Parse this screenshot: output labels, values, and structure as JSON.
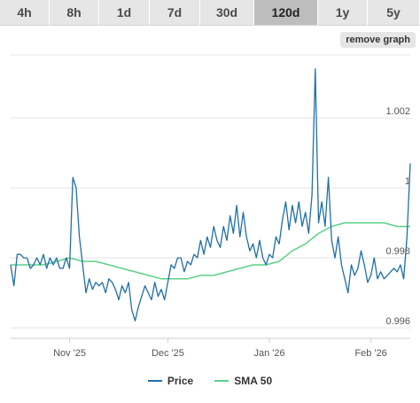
{
  "tabs": [
    {
      "label": "4h",
      "active": false
    },
    {
      "label": "8h",
      "active": false
    },
    {
      "label": "1d",
      "active": false
    },
    {
      "label": "7d",
      "active": false
    },
    {
      "label": "30d",
      "active": false
    },
    {
      "label": "120d",
      "active": true
    },
    {
      "label": "1y",
      "active": false
    },
    {
      "label": "5y",
      "active": false
    }
  ],
  "remove_graph_label": "remove graph",
  "legend": {
    "price_label": "Price",
    "sma_label": "SMA 50"
  },
  "colors": {
    "price": "#1f6fa8",
    "sma": "#5bd08a",
    "grid": "#e4e4e4",
    "axis_text": "#555555",
    "tab_active": "#bdbdbd",
    "tab": "#e6e6e6"
  },
  "chart_data": {
    "type": "line",
    "title": "",
    "xlabel": "",
    "ylabel": "",
    "x_range": [
      "2025-10-14",
      "2026-02-13"
    ],
    "ylim": [
      0.9957,
      1.0038
    ],
    "x_ticks": [
      {
        "date": "2025-11-01",
        "label": "Nov '25"
      },
      {
        "date": "2025-12-01",
        "label": "Dec '25"
      },
      {
        "date": "2026-01-01",
        "label": "Jan '26"
      },
      {
        "date": "2026-02-01",
        "label": "Feb '26"
      }
    ],
    "y_ticks": [
      {
        "value": 0.996,
        "label": "0.996"
      },
      {
        "value": 0.998,
        "label": "0.998"
      },
      {
        "value": 1.0,
        "label": "1"
      },
      {
        "value": 1.002,
        "label": "1.002"
      }
    ],
    "grid": true,
    "legend_position": "bottom",
    "series": [
      {
        "name": "Price",
        "points": [
          [
            "2025-10-14",
            0.9978
          ],
          [
            "2025-10-15",
            0.9972
          ],
          [
            "2025-10-16",
            0.9981
          ],
          [
            "2025-10-17",
            0.9981
          ],
          [
            "2025-10-18",
            0.998
          ],
          [
            "2025-10-19",
            0.998
          ],
          [
            "2025-10-20",
            0.9977
          ],
          [
            "2025-10-21",
            0.9978
          ],
          [
            "2025-10-22",
            0.998
          ],
          [
            "2025-10-23",
            0.9978
          ],
          [
            "2025-10-24",
            0.9981
          ],
          [
            "2025-10-25",
            0.9977
          ],
          [
            "2025-10-26",
            0.998
          ],
          [
            "2025-10-27",
            0.9978
          ],
          [
            "2025-10-28",
            0.998
          ],
          [
            "2025-10-29",
            0.9977
          ],
          [
            "2025-10-30",
            0.9977
          ],
          [
            "2025-10-31",
            0.998
          ],
          [
            "2025-11-01",
            0.9977
          ],
          [
            "2025-11-02",
            1.0003
          ],
          [
            "2025-11-03",
            1.0
          ],
          [
            "2025-11-04",
            0.9986
          ],
          [
            "2025-11-05",
            0.9978
          ],
          [
            "2025-11-06",
            0.997
          ],
          [
            "2025-11-07",
            0.9974
          ],
          [
            "2025-11-08",
            0.9971
          ],
          [
            "2025-11-09",
            0.9973
          ],
          [
            "2025-11-10",
            0.9972
          ],
          [
            "2025-11-11",
            0.9973
          ],
          [
            "2025-11-12",
            0.997
          ],
          [
            "2025-11-13",
            0.9974
          ],
          [
            "2025-11-14",
            0.9973
          ],
          [
            "2025-11-15",
            0.9971
          ],
          [
            "2025-11-16",
            0.9968
          ],
          [
            "2025-11-17",
            0.9972
          ],
          [
            "2025-11-18",
            0.997
          ],
          [
            "2025-11-19",
            0.9973
          ],
          [
            "2025-11-20",
            0.9965
          ],
          [
            "2025-11-21",
            0.9962
          ],
          [
            "2025-11-22",
            0.9966
          ],
          [
            "2025-11-23",
            0.9969
          ],
          [
            "2025-11-24",
            0.9972
          ],
          [
            "2025-11-25",
            0.997
          ],
          [
            "2025-11-26",
            0.9968
          ],
          [
            "2025-11-27",
            0.9973
          ],
          [
            "2025-11-28",
            0.9969
          ],
          [
            "2025-11-29",
            0.9971
          ],
          [
            "2025-11-30",
            0.9968
          ],
          [
            "2025-12-01",
            0.9973
          ],
          [
            "2025-12-02",
            0.9978
          ],
          [
            "2025-12-03",
            0.9977
          ],
          [
            "2025-12-04",
            0.998
          ],
          [
            "2025-12-05",
            0.998
          ],
          [
            "2025-12-06",
            0.9976
          ],
          [
            "2025-12-07",
            0.9979
          ],
          [
            "2025-12-08",
            0.9978
          ],
          [
            "2025-12-09",
            0.9981
          ],
          [
            "2025-12-10",
            0.998
          ],
          [
            "2025-12-11",
            0.9985
          ],
          [
            "2025-12-12",
            0.9981
          ],
          [
            "2025-12-13",
            0.9986
          ],
          [
            "2025-12-14",
            0.9983
          ],
          [
            "2025-12-15",
            0.9989
          ],
          [
            "2025-12-16",
            0.9985
          ],
          [
            "2025-12-17",
            0.9983
          ],
          [
            "2025-12-18",
            0.9989
          ],
          [
            "2025-12-19",
            0.9985
          ],
          [
            "2025-12-20",
            0.9992
          ],
          [
            "2025-12-21",
            0.9987
          ],
          [
            "2025-12-22",
            0.9995
          ],
          [
            "2025-12-23",
            0.9986
          ],
          [
            "2025-12-24",
            0.9993
          ],
          [
            "2025-12-25",
            0.9986
          ],
          [
            "2025-12-26",
            0.9982
          ],
          [
            "2025-12-27",
            0.9984
          ],
          [
            "2025-12-28",
            0.998
          ],
          [
            "2025-12-29",
            0.9985
          ],
          [
            "2025-12-30",
            0.998
          ],
          [
            "2025-12-31",
            0.9978
          ],
          [
            "2026-01-01",
            0.9981
          ],
          [
            "2026-01-02",
            0.998
          ],
          [
            "2026-01-03",
            0.9986
          ],
          [
            "2026-01-04",
            0.9984
          ],
          [
            "2026-01-05",
            0.9991
          ],
          [
            "2026-01-06",
            0.9996
          ],
          [
            "2026-01-07",
            0.9988
          ],
          [
            "2026-01-08",
            0.9995
          ],
          [
            "2026-01-09",
            0.999
          ],
          [
            "2026-01-10",
            0.9996
          ],
          [
            "2026-01-11",
            0.9989
          ],
          [
            "2026-01-12",
            0.9993
          ],
          [
            "2026-01-13",
            0.9987
          ],
          [
            "2026-01-14",
            0.9998
          ],
          [
            "2026-01-15",
            1.0034
          ],
          [
            "2026-01-16",
            0.999
          ],
          [
            "2026-01-17",
            0.9996
          ],
          [
            "2026-01-18",
            0.9989
          ],
          [
            "2026-01-19",
            1.0003
          ],
          [
            "2026-01-20",
            0.9985
          ],
          [
            "2026-01-21",
            0.998
          ],
          [
            "2026-01-22",
            0.9986
          ],
          [
            "2026-01-23",
            0.9978
          ],
          [
            "2026-01-24",
            0.9974
          ],
          [
            "2026-01-25",
            0.997
          ],
          [
            "2026-01-26",
            0.9978
          ],
          [
            "2026-01-27",
            0.9975
          ],
          [
            "2026-01-28",
            0.9977
          ],
          [
            "2026-01-29",
            0.9982
          ],
          [
            "2026-01-30",
            0.9978
          ],
          [
            "2026-01-31",
            0.9973
          ],
          [
            "2026-02-01",
            0.9975
          ],
          [
            "2026-02-02",
            0.998
          ],
          [
            "2026-02-03",
            0.9974
          ],
          [
            "2026-02-04",
            0.9976
          ],
          [
            "2026-02-05",
            0.9974
          ],
          [
            "2026-02-06",
            0.9975
          ],
          [
            "2026-02-07",
            0.9976
          ],
          [
            "2026-02-08",
            0.9977
          ],
          [
            "2026-02-09",
            0.9976
          ],
          [
            "2026-02-10",
            0.9978
          ],
          [
            "2026-02-11",
            0.9974
          ],
          [
            "2026-02-12",
            0.9986
          ],
          [
            "2026-02-13",
            1.0007
          ]
        ]
      },
      {
        "name": "SMA 50",
        "points": [
          [
            "2025-10-14",
            0.9978
          ],
          [
            "2025-10-17",
            0.9978
          ],
          [
            "2025-10-20",
            0.9978
          ],
          [
            "2025-10-24",
            0.9978
          ],
          [
            "2025-10-28",
            0.9979
          ],
          [
            "2025-11-01",
            0.998
          ],
          [
            "2025-11-05",
            0.9979
          ],
          [
            "2025-11-09",
            0.9979
          ],
          [
            "2025-11-13",
            0.9978
          ],
          [
            "2025-11-17",
            0.9977
          ],
          [
            "2025-11-21",
            0.9976
          ],
          [
            "2025-11-25",
            0.9975
          ],
          [
            "2025-11-29",
            0.9974
          ],
          [
            "2025-12-03",
            0.9974
          ],
          [
            "2025-12-07",
            0.9974
          ],
          [
            "2025-12-11",
            0.9975
          ],
          [
            "2025-12-15",
            0.9975
          ],
          [
            "2025-12-19",
            0.9976
          ],
          [
            "2025-12-23",
            0.9977
          ],
          [
            "2025-12-27",
            0.9978
          ],
          [
            "2025-12-31",
            0.9978
          ],
          [
            "2026-01-04",
            0.9979
          ],
          [
            "2026-01-08",
            0.9982
          ],
          [
            "2026-01-12",
            0.9984
          ],
          [
            "2026-01-16",
            0.9987
          ],
          [
            "2026-01-20",
            0.9989
          ],
          [
            "2026-01-24",
            0.999
          ],
          [
            "2026-01-28",
            0.999
          ],
          [
            "2026-02-01",
            0.999
          ],
          [
            "2026-02-05",
            0.999
          ],
          [
            "2026-02-09",
            0.9989
          ],
          [
            "2026-02-13",
            0.9989
          ]
        ]
      }
    ]
  }
}
